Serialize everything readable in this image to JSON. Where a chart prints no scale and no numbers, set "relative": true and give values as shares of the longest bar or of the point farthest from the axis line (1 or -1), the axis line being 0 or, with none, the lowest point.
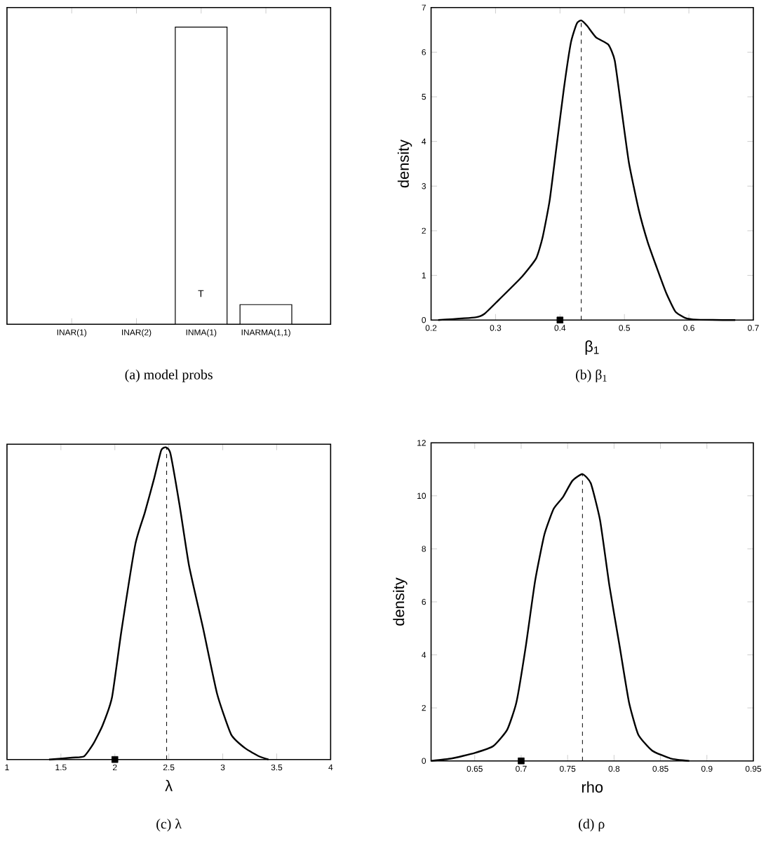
{
  "chart_data": [
    {
      "type": "bar",
      "categories": [
        "INAR(1)",
        "INAR(2)",
        "INMA(1)",
        "INARMA(1,1)"
      ],
      "values": [
        0,
        0,
        1,
        0.066
      ],
      "color": "#ffffff",
      "relative": true,
      "tick_labels": "x",
      "annotations": [
        "T",
        "(a) model probs"
      ]
    },
    {
      "type": "line",
      "xlabel": "β$_{1}$",
      "ylabel": "density",
      "xlim": [
        0.2,
        0.7
      ],
      "xticks": [
        0.2,
        0.3,
        0.4,
        0.5,
        0.6,
        0.7
      ],
      "ylim": [
        0,
        7
      ],
      "yticks": [
        0,
        1,
        2,
        3,
        4,
        5,
        6,
        7
      ],
      "series": [
        {
          "color": "#000000",
          "x": [
            0.211,
            0.269,
            0.283,
            0.305,
            0.341,
            0.363,
            0.373,
            0.384,
            0.395,
            0.406,
            0.417,
            0.426,
            0.433,
            0.442,
            0.456,
            0.475,
            0.485,
            0.496,
            0.507,
            0.522,
            0.536,
            0.55,
            0.565,
            0.579,
            0.594,
            0.612,
            0.672
          ],
          "values": [
            0,
            0.06,
            0.14,
            0.45,
            0.97,
            1.38,
            1.85,
            2.68,
            3.93,
            5.18,
            6.22,
            6.64,
            6.71,
            6.59,
            6.33,
            6.17,
            5.81,
            4.66,
            3.52,
            2.48,
            1.75,
            1.18,
            0.6,
            0.19,
            0.05,
            0.01,
            0
          ]
        },
        {
          "type": "scatter",
          "marker": "square",
          "color": "#000000",
          "x": [
            0.4
          ],
          "values": [
            0
          ]
        }
      ],
      "ref_lines": [
        {
          "axis": "x",
          "value": 0.433,
          "line_style": "dashed",
          "color": "#000000"
        }
      ],
      "annotations": [
        "(b) β$_{1}$"
      ]
    },
    {
      "type": "line",
      "xlabel": "λ",
      "relative": true,
      "tick_labels": "x",
      "xlim": [
        1,
        4
      ],
      "xticks": [
        1,
        1.5,
        2,
        2.5,
        3,
        3.5,
        4
      ],
      "series": [
        {
          "color": "#000000",
          "x": [
            1.39,
            1.606,
            1.714,
            1.8,
            1.887,
            1.974,
            2.06,
            2.19,
            2.277,
            2.364,
            2.429,
            2.472,
            2.515,
            2.602,
            2.688,
            2.818,
            2.948,
            3.078,
            3.208,
            3.338,
            3.424
          ],
          "values": [
            0,
            0.006,
            0.01,
            0.05,
            0.11,
            0.2,
            0.41,
            0.69,
            0.79,
            0.9,
            0.99,
            1,
            0.98,
            0.81,
            0.62,
            0.42,
            0.21,
            0.08,
            0.036,
            0.01,
            0
          ]
        },
        {
          "type": "scatter",
          "marker": "square",
          "color": "#000000",
          "x": [
            2
          ],
          "values": [
            0
          ]
        }
      ],
      "ref_lines": [
        {
          "axis": "x",
          "value": 2.48,
          "line_style": "dashed",
          "color": "#000000"
        }
      ],
      "annotations": [
        "(c) λ"
      ]
    },
    {
      "type": "line",
      "xlabel": "rho",
      "ylabel": "density",
      "xlim": [
        0.603,
        0.95
      ],
      "xticks": [
        0.65,
        0.7,
        0.75,
        0.8,
        0.85,
        0.9,
        0.95
      ],
      "ylim": [
        0,
        12
      ],
      "yticks": [
        0,
        2,
        4,
        6,
        8,
        10,
        12
      ],
      "series": [
        {
          "color": "#000000",
          "x": [
            0.603,
            0.625,
            0.65,
            0.67,
            0.685,
            0.695,
            0.705,
            0.715,
            0.725,
            0.735,
            0.745,
            0.755,
            0.766,
            0.775,
            0.785,
            0.795,
            0.806,
            0.816,
            0.826,
            0.841,
            0.861,
            0.881
          ],
          "values": [
            0,
            0.09,
            0.3,
            0.56,
            1.18,
            2.23,
            4.33,
            6.79,
            8.54,
            9.51,
            9.95,
            10.56,
            10.82,
            10.47,
            9.07,
            6.61,
            4.33,
            2.23,
            1.0,
            0.39,
            0.09,
            0
          ]
        },
        {
          "type": "scatter",
          "marker": "square",
          "color": "#000000",
          "x": [
            0.7
          ],
          "values": [
            0
          ]
        }
      ],
      "ref_lines": [
        {
          "axis": "x",
          "value": 0.766,
          "line_style": "dashed",
          "color": "#000000"
        }
      ],
      "annotations": [
        "(d) ρ"
      ]
    }
  ]
}
